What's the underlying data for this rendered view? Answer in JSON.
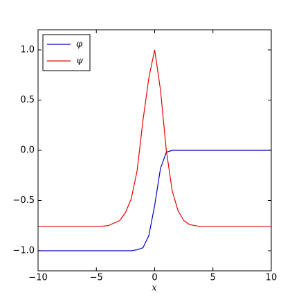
{
  "chart_data": {
    "type": "line",
    "xlabel": "x",
    "x": [
      -10,
      -5,
      -4,
      -3,
      -2.5,
      -2,
      -1.5,
      -1,
      -0.5,
      0,
      0.5,
      1,
      1.5,
      2,
      2.5,
      3,
      4,
      5,
      10
    ],
    "series": [
      {
        "name": "φ",
        "color": "#0000cc",
        "values": [
          -1,
          -1,
          -1,
          -1,
          -1,
          -1,
          -0.99,
          -0.97,
          -0.85,
          -0.55,
          -0.18,
          -0.02,
          0,
          0,
          0,
          0,
          0,
          0,
          0
        ]
      },
      {
        "name": "ψ",
        "color": "#ee0000",
        "values": [
          -0.76,
          -0.76,
          -0.75,
          -0.7,
          -0.62,
          -0.48,
          -0.2,
          0.3,
          0.72,
          1.0,
          0.6,
          0.0,
          -0.4,
          -0.6,
          -0.7,
          -0.74,
          -0.76,
          -0.76,
          -0.76
        ]
      }
    ],
    "xlim": [
      -10,
      10
    ],
    "ylim": [
      -1.2,
      1.2
    ],
    "xticks": [
      {
        "value": -10,
        "label": "−10"
      },
      {
        "value": -5,
        "label": "−5"
      },
      0,
      5,
      10
    ],
    "yticks": [
      {
        "value": -1,
        "label": "−1.0"
      },
      {
        "value": -0.5,
        "label": "−0.5"
      },
      {
        "value": 0,
        "label": "0.0"
      },
      {
        "value": 0.5,
        "label": "0.5"
      },
      {
        "value": 1,
        "label": "1.0"
      }
    ],
    "legend": "upper left",
    "grid": false
  }
}
